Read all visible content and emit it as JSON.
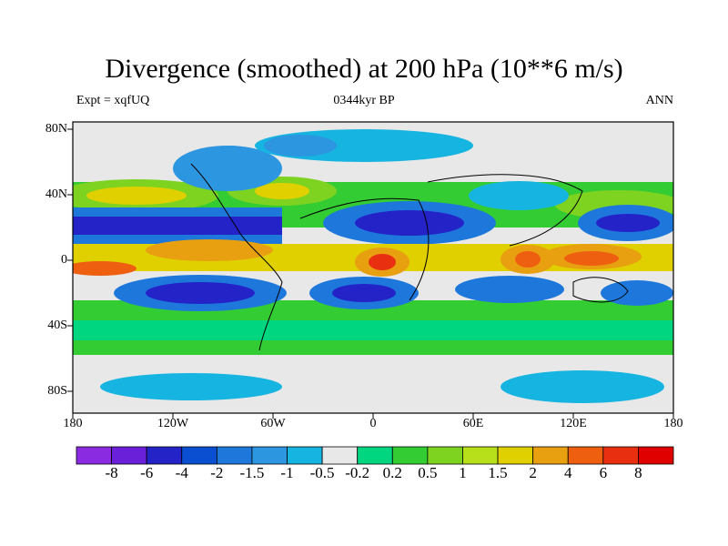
{
  "title": "Divergence (smoothed) at 200 hPa (10**6 m/s)",
  "left_label": "Expt = xqfUQ",
  "center_label": "0344kyr BP",
  "right_label": "ANN",
  "lat_ticks": [
    "80N",
    "40N",
    "0",
    "40S",
    "80S"
  ],
  "lon_ticks": [
    "180",
    "120W",
    "60W",
    "0",
    "60E",
    "120E",
    "180"
  ],
  "colorbar": {
    "colors": [
      "#8a2be2",
      "#6a20d8",
      "#2323c8",
      "#0a4fd2",
      "#1e78dc",
      "#2c96e0",
      "#16b4e0",
      "#e8e8e8",
      "#00d680",
      "#33cc33",
      "#7ed321",
      "#b8e01a",
      "#e0d000",
      "#e8a010",
      "#ee6010",
      "#e83010",
      "#e00000"
    ],
    "labels": [
      "-8",
      "-6",
      "-4",
      "-2",
      "-1.5",
      "-1",
      "-0.5",
      "-0.2",
      "0.2",
      "0.5",
      "1",
      "1.5",
      "2",
      "4",
      "6",
      "8"
    ]
  }
}
